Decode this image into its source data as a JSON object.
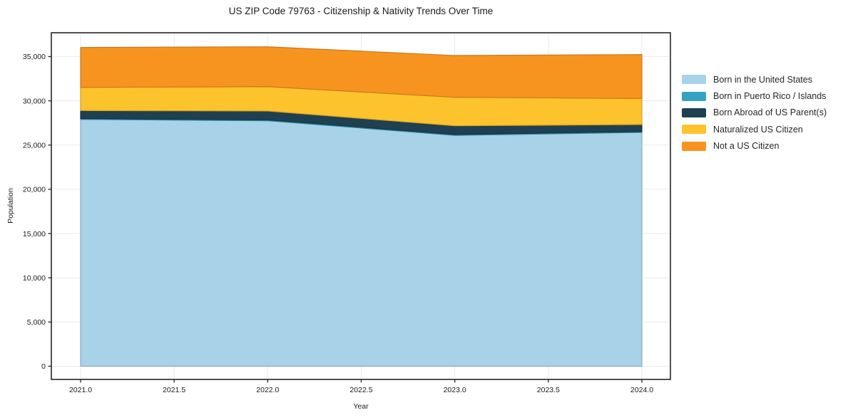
{
  "title": "US ZIP Code 79763 - Citizenship & Nativity Trends Over Time",
  "chart_data": {
    "type": "area",
    "stacked": true,
    "title": "US ZIP Code 79763 - Citizenship & Nativity Trends Over Time",
    "xlabel": "Year",
    "ylabel": "Population",
    "x": [
      2021,
      2022,
      2023,
      2024
    ],
    "series": [
      {
        "name": "Born in the United States",
        "color": "#a8d2e8",
        "values": [
          27900,
          27750,
          26100,
          26430
        ]
      },
      {
        "name": "Born in Puerto Rico / Islands",
        "color": "#35a2c2",
        "values": [
          100,
          100,
          100,
          100
        ]
      },
      {
        "name": "Born Abroad of US Parent(s)",
        "color": "#1f4050",
        "values": [
          900,
          1000,
          980,
          790
        ]
      },
      {
        "name": "Naturalized US Citizen",
        "color": "#fcc32d",
        "values": [
          2620,
          2750,
          3220,
          2950
        ]
      },
      {
        "name": "Not a US Citizen",
        "color": "#f79420",
        "values": [
          4510,
          4510,
          4720,
          4960
        ]
      }
    ],
    "totals_by_year": [
      36030,
      36110,
      35120,
      35230
    ],
    "xticks": {
      "values": [
        2021,
        2021.5,
        2022,
        2022.5,
        2023,
        2023.5,
        2024
      ],
      "labels": [
        "2021.0",
        "2021.5",
        "2022.0",
        "2022.5",
        "2023.0",
        "2023.5",
        "2024.0"
      ]
    },
    "yticks": {
      "values": [
        0,
        5000,
        10000,
        15000,
        20000,
        25000,
        30000,
        35000
      ],
      "labels": [
        "0",
        "5,000",
        "10,000",
        "15,000",
        "20,000",
        "25,000",
        "30,000",
        "35,000"
      ]
    },
    "xlim": [
      2020.8437,
      2024.1525
    ],
    "ylim": [
      -1490,
      37695
    ],
    "grid": true,
    "grid_color": "#eaeaea",
    "spine_color": "#262626",
    "tick_label_color": "#1a1a1a",
    "legend_position": "right-outside"
  }
}
